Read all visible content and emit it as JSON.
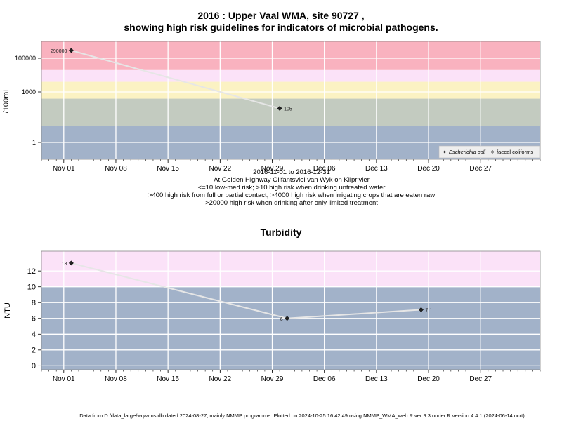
{
  "chart_data": [
    {
      "type": "scatter",
      "title_line1": "2016 : Upper Vaal WMA, site 90727 ,",
      "title_line2": "showing high risk guidelines for indicators of microbial pathogens.",
      "ylabel": "/100mL",
      "xlabel": "",
      "y_scale": "log",
      "ylim": [
        0.1,
        1000000
      ],
      "xlim": [
        "2016-10-29",
        "2017-01-04"
      ],
      "x_ticks": [
        {
          "date": "2016-11-01",
          "label": "Nov 01"
        },
        {
          "date": "2016-11-08",
          "label": "Nov 08"
        },
        {
          "date": "2016-11-15",
          "label": "Nov 15"
        },
        {
          "date": "2016-11-22",
          "label": "Nov 22"
        },
        {
          "date": "2016-11-29",
          "label": "Nov 29"
        },
        {
          "date": "2016-12-06",
          "label": "Dec 06"
        },
        {
          "date": "2016-12-13",
          "label": "Dec 13"
        },
        {
          "date": "2016-12-20",
          "label": "Dec 20"
        },
        {
          "date": "2016-12-27",
          "label": "Dec 27"
        }
      ],
      "y_ticks": [
        {
          "value": 1,
          "label": "1"
        },
        {
          "value": 1000,
          "label": "1000"
        },
        {
          "value": 100000,
          "label": "100000"
        }
      ],
      "bands": [
        {
          "from": 0.1,
          "to": 10,
          "color": "#a2b2c9"
        },
        {
          "from": 10,
          "to": 400,
          "color": "#c3cbc0"
        },
        {
          "from": 400,
          "to": 4000,
          "color": "#fbf2c3"
        },
        {
          "from": 4000,
          "to": 20000,
          "color": "#fbe2f8"
        },
        {
          "from": 20000,
          "to": 1000000,
          "color": "#f9b2bf"
        }
      ],
      "series": [
        {
          "name": "Escherichia coli",
          "marker": "filled-diamond",
          "points": [
            {
              "x": "2016-11-02",
              "y": 290000,
              "label": "290000"
            },
            {
              "x": "2016-11-30",
              "y": 105,
              "label": "105"
            }
          ]
        },
        {
          "name": "faecal coliforms",
          "marker": "open-diamond",
          "points": []
        }
      ],
      "legend_position": "bottom-right",
      "grid": true
    },
    {
      "type": "scatter",
      "title": "Turbidity",
      "ylabel": "NTU",
      "xlabel": "",
      "ylim": [
        -0.5,
        14.5
      ],
      "xlim": [
        "2016-10-29",
        "2017-01-04"
      ],
      "x_ticks": [
        {
          "date": "2016-11-01",
          "label": "Nov 01"
        },
        {
          "date": "2016-11-08",
          "label": "Nov 08"
        },
        {
          "date": "2016-11-15",
          "label": "Nov 15"
        },
        {
          "date": "2016-11-22",
          "label": "Nov 22"
        },
        {
          "date": "2016-11-29",
          "label": "Nov 29"
        },
        {
          "date": "2016-12-06",
          "label": "Dec 06"
        },
        {
          "date": "2016-12-13",
          "label": "Dec 13"
        },
        {
          "date": "2016-12-20",
          "label": "Dec 20"
        },
        {
          "date": "2016-12-27",
          "label": "Dec 27"
        }
      ],
      "y_ticks": [
        {
          "value": 0,
          "label": "0"
        },
        {
          "value": 2,
          "label": "2"
        },
        {
          "value": 4,
          "label": "4"
        },
        {
          "value": 6,
          "label": "6"
        },
        {
          "value": 8,
          "label": "8"
        },
        {
          "value": 10,
          "label": "10"
        },
        {
          "value": 12,
          "label": "12"
        }
      ],
      "bands": [
        {
          "from": -0.5,
          "to": 10,
          "color": "#a2b2c9"
        },
        {
          "from": 10,
          "to": 14.5,
          "color": "#fbe2f8"
        }
      ],
      "series": [
        {
          "name": "",
          "marker": "filled-diamond",
          "points": [
            {
              "x": "2016-11-02",
              "y": 13,
              "label": "13"
            },
            {
              "x": "2016-12-01",
              "y": 6,
              "label": "6"
            },
            {
              "x": "2016-12-19",
              "y": 7.1,
              "label": "7.1"
            }
          ]
        }
      ],
      "grid": true
    }
  ],
  "caption": [
    "2016-11-01 to 2016-12-31",
    "At Golden Highway Olifantsvlei van Wyk on Kliprivier",
    "<=10 low-med risk; >10 high risk when drinking untreated water",
    ">400 high risk from full or partial contact; >4000 high risk when irrigating crops that are eaten raw",
    ">20000 high risk when drinking after only limited treatment"
  ],
  "footer": "Data from D:/data_large/wq/wms.db dated 2024-08-27, mainly NMMP programme. Plotted on 2024-10-25 16:42:49 using NMMP_WMA_web.R ver 9.3 under R version 4.4.1 (2024-06-14 ucrt)"
}
